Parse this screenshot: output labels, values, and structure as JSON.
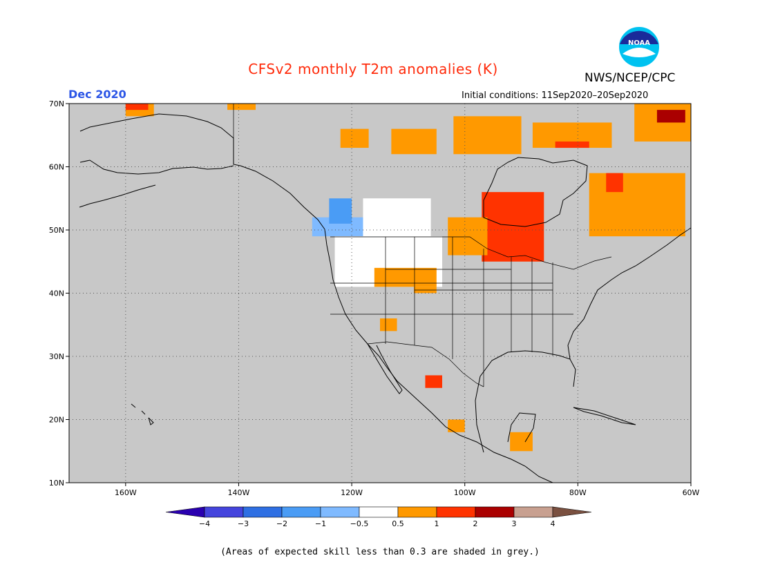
{
  "title": "CFSv2 monthly T2m anomalies (K)",
  "agency": "NWS/NCEP/CPC",
  "logo_text": "NOAA",
  "valid_month": "Dec 2020",
  "initial_conditions": "Initial conditions: 11Sep2020–20Sep2020",
  "footnote": "(Areas of expected skill less than 0.3 are shaded in grey.)",
  "map": {
    "extent": {
      "lon_min": -170,
      "lon_max": -60,
      "lat_min": 10,
      "lat_max": 70
    },
    "lon_ticks": [
      {
        "lon": -160,
        "label": "160W"
      },
      {
        "lon": -140,
        "label": "140W"
      },
      {
        "lon": -120,
        "label": "120W"
      },
      {
        "lon": -100,
        "label": "100W"
      },
      {
        "lon": -80,
        "label": "80W"
      },
      {
        "lon": -60,
        "label": "60W"
      }
    ],
    "lat_ticks": [
      {
        "lat": 70,
        "label": "70N"
      },
      {
        "lat": 60,
        "label": "60N"
      },
      {
        "lat": 50,
        "label": "50N"
      },
      {
        "lat": 40,
        "label": "40N"
      },
      {
        "lat": 30,
        "label": "30N"
      },
      {
        "lat": 20,
        "label": "20N"
      },
      {
        "lat": 10,
        "label": "10N"
      }
    ],
    "background_color": "#c8c8c8",
    "regions": [
      {
        "name": "alaska-north-coast-warm",
        "class": "0.5to1",
        "color": "#ff9900",
        "lon": [
          -160,
          -155
        ],
        "lat": [
          68,
          70
        ]
      },
      {
        "name": "alaska-north-coast-warmer",
        "class": "1to2",
        "color": "#ff3300",
        "lon": [
          -160,
          -156
        ],
        "lat": [
          69,
          70
        ]
      },
      {
        "name": "yukon-north-warm",
        "class": "0.5to1",
        "color": "#ff9900",
        "lon": [
          -142,
          -137
        ],
        "lat": [
          69,
          70
        ]
      },
      {
        "name": "nw-territories-warm",
        "class": "0.5to1",
        "color": "#ff9900",
        "lon": [
          -113,
          -105
        ],
        "lat": [
          62,
          66
        ]
      },
      {
        "name": "great-bear-warm",
        "class": "0.5to1",
        "color": "#ff9900",
        "lon": [
          -122,
          -117
        ],
        "lat": [
          63,
          66
        ]
      },
      {
        "name": "nunavut-warm",
        "class": "0.5to1",
        "color": "#ff9900",
        "lon": [
          -102,
          -90
        ],
        "lat": [
          62,
          68
        ]
      },
      {
        "name": "baffin-warm",
        "class": "0.5to1",
        "color": "#ff9900",
        "lon": [
          -88,
          -74
        ],
        "lat": [
          63,
          67
        ]
      },
      {
        "name": "baffin-warmer",
        "class": "1to2",
        "color": "#ff3300",
        "lon": [
          -84,
          -78
        ],
        "lat": [
          63,
          64
        ]
      },
      {
        "name": "greenland-coast-warm",
        "class": "0.5to1",
        "color": "#ff9900",
        "lon": [
          -70,
          -60
        ],
        "lat": [
          64,
          70
        ]
      },
      {
        "name": "greenland-coast-hot",
        "class": "2to3",
        "color": "#aa0000",
        "lon": [
          -66,
          -61
        ],
        "lat": [
          67,
          69
        ]
      },
      {
        "name": "hudson-bay-west-hot",
        "class": "1to2",
        "color": "#ff3300",
        "lon": [
          -97,
          -86
        ],
        "lat": [
          45,
          56
        ]
      },
      {
        "name": "ontario-warm",
        "class": "0.5to1",
        "color": "#ff9900",
        "lon": [
          -103,
          -96
        ],
        "lat": [
          46,
          52
        ]
      },
      {
        "name": "quebec-labrador-warm",
        "class": "0.5to1",
        "color": "#ff9900",
        "lon": [
          -78,
          -61
        ],
        "lat": [
          49,
          59
        ]
      },
      {
        "name": "labrador-warmer",
        "class": "1to2",
        "color": "#ff3300",
        "lon": [
          -75,
          -72
        ],
        "lat": [
          56,
          59
        ]
      },
      {
        "name": "bc-coast-cool",
        "class": "-1to-0.5",
        "color": "#7fbaff",
        "lon": [
          -127,
          -115
        ],
        "lat": [
          49,
          52
        ]
      },
      {
        "name": "bc-interior-cooler",
        "class": "-2to-1",
        "color": "#4a9cf5",
        "lon": [
          -124,
          -120
        ],
        "lat": [
          51,
          55
        ]
      },
      {
        "name": "alberta-neutral",
        "class": "-0.5to0.5",
        "color": "#ffffff",
        "lon": [
          -118,
          -106
        ],
        "lat": [
          49,
          55
        ]
      },
      {
        "name": "us-west-neutral",
        "class": "-0.5to0.5",
        "color": "#ffffff",
        "lon": [
          -123,
          -104
        ],
        "lat": [
          41,
          49
        ]
      },
      {
        "name": "wyoming-warm",
        "class": "0.5to1",
        "color": "#ff9900",
        "lon": [
          -116,
          -105
        ],
        "lat": [
          41,
          44
        ]
      },
      {
        "name": "colorado-warm",
        "class": "0.5to1",
        "color": "#ff9900",
        "lon": [
          -109,
          -105
        ],
        "lat": [
          40,
          41
        ]
      },
      {
        "name": "arizona-warm",
        "class": "0.5to1",
        "color": "#ff9900",
        "lon": [
          -115,
          -112
        ],
        "lat": [
          34,
          36
        ]
      },
      {
        "name": "mexico-north-hot",
        "class": "1to2",
        "color": "#ff3300",
        "lon": [
          -107,
          -104
        ],
        "lat": [
          25,
          27
        ]
      },
      {
        "name": "mexico-south-warm",
        "class": "0.5to1",
        "color": "#ff9900",
        "lon": [
          -103,
          -100
        ],
        "lat": [
          18,
          20
        ]
      },
      {
        "name": "central-america-warm",
        "class": "0.5to1",
        "color": "#ff9900",
        "lon": [
          -92,
          -88
        ],
        "lat": [
          15,
          18
        ]
      }
    ]
  },
  "colorbar": {
    "ticks": [
      "−4",
      "−3",
      "−2",
      "−1",
      "−0.5",
      "0.5",
      "1",
      "2",
      "3",
      "4"
    ],
    "colors": [
      "#2a00b0",
      "#4444dd",
      "#2e6fe3",
      "#4a9cf5",
      "#7fbaff",
      "#ffffff",
      "#ff9900",
      "#ff3300",
      "#aa0000",
      "#c8a090",
      "#7a5040"
    ]
  }
}
